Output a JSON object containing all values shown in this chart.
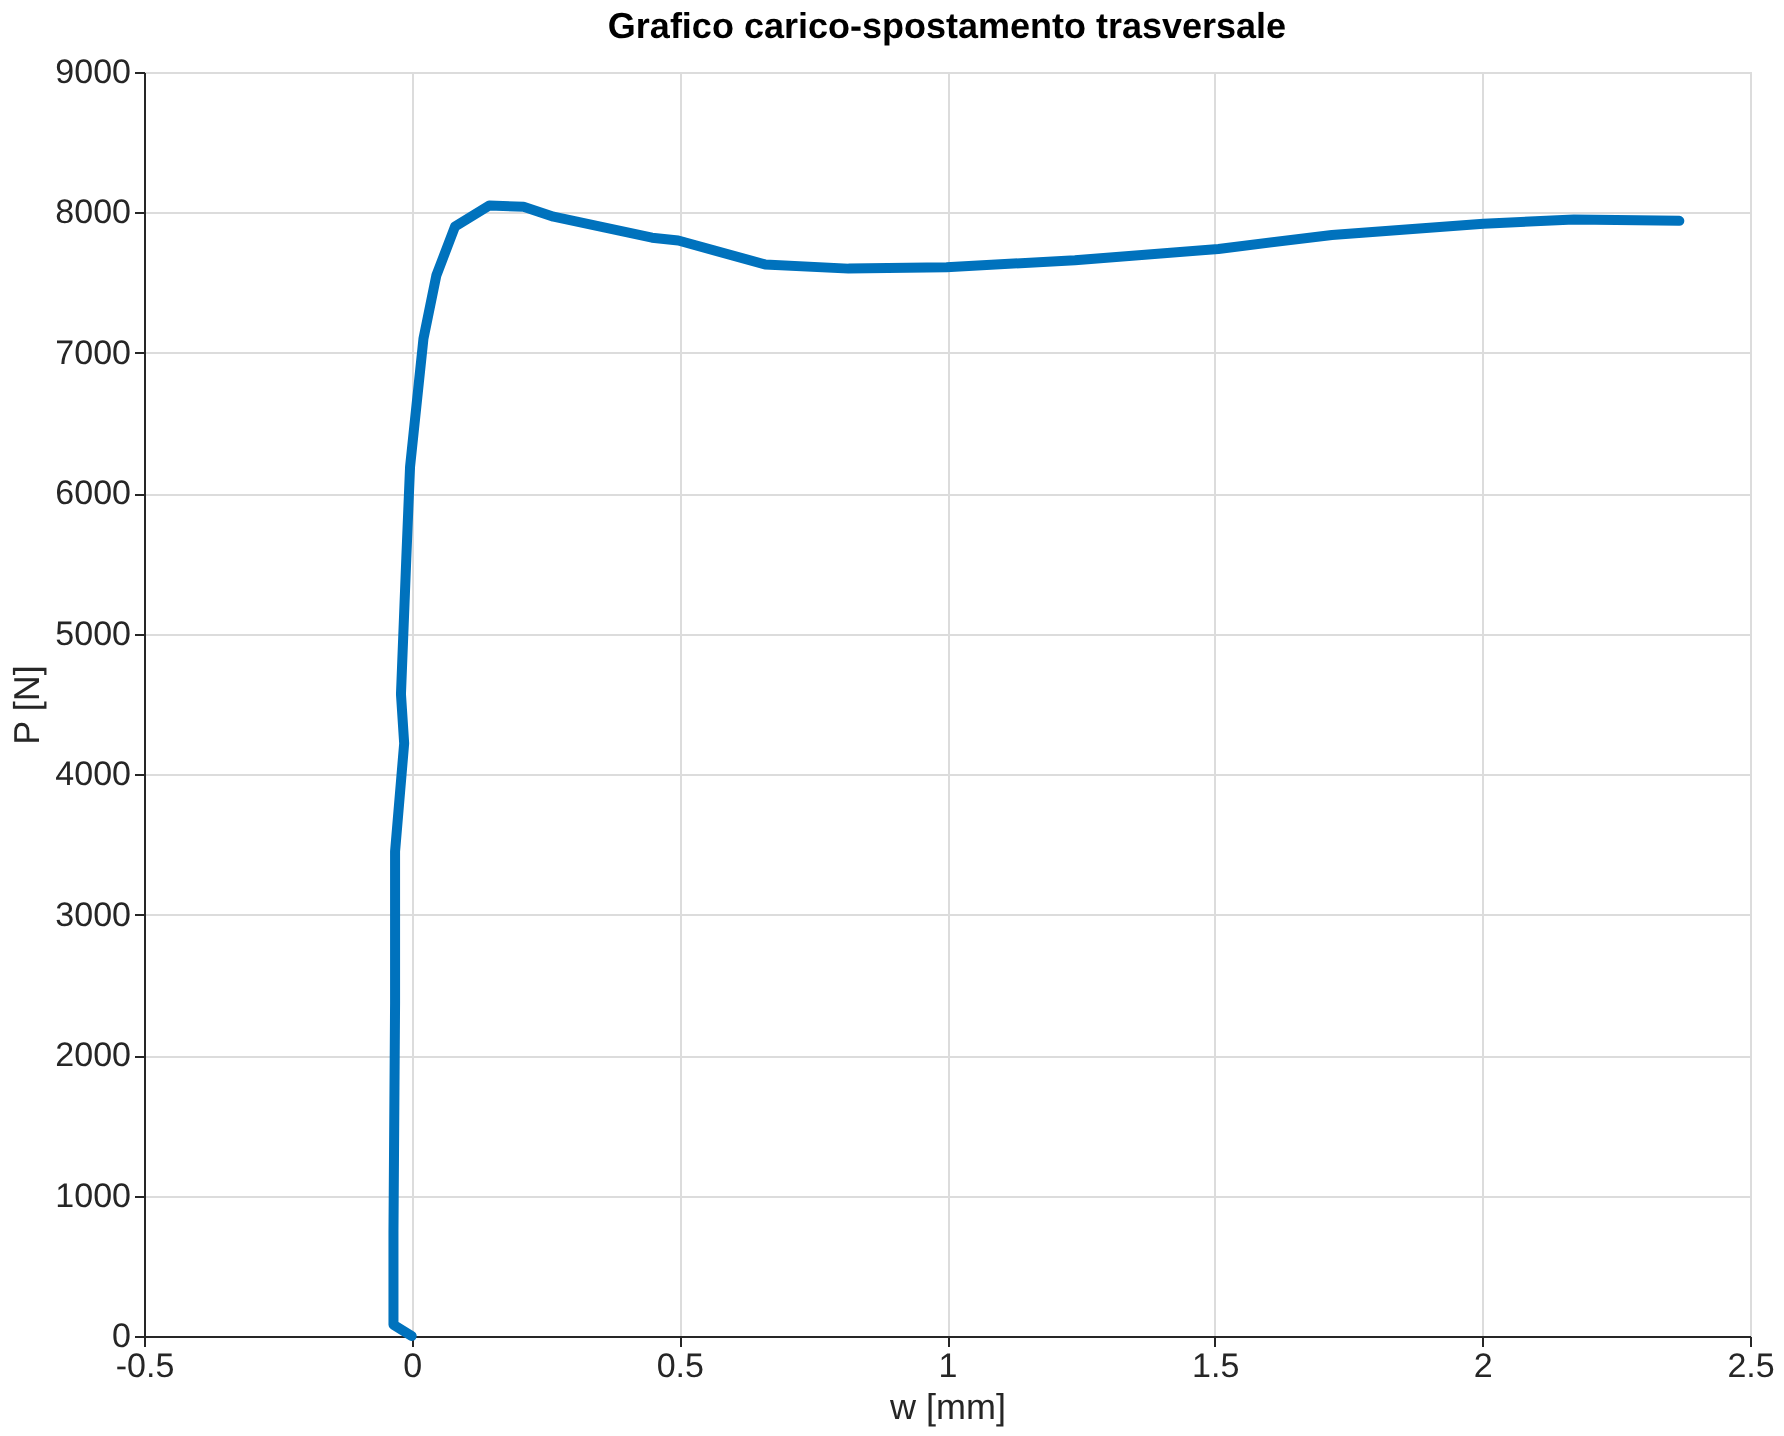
{
  "chart_data": {
    "type": "line",
    "title": "Grafico carico-spostamento trasversale",
    "xlabel": "w [mm]",
    "ylabel": "P [N]",
    "x": [
      0,
      -0.034,
      -0.034,
      -0.031,
      -0.031,
      -0.014,
      -0.02,
      -0.01,
      -0.003,
      0.022,
      0.046,
      0.081,
      0.145,
      0.209,
      0.265,
      0.449,
      0.498,
      0.66,
      0.816,
      0.999,
      1.239,
      1.507,
      1.719,
      2.002,
      2.171,
      2.368
    ],
    "series": [
      {
        "color": "#0072bd",
        "values": [
          0,
          80,
          750,
          2370,
          3450,
          4220,
          4570,
          5540,
          6190,
          7100,
          7550,
          7900,
          8050,
          8040,
          7970,
          7820,
          7800,
          7630,
          7600,
          7610,
          7660,
          7740,
          7840,
          7920,
          7950,
          7940
        ]
      }
    ],
    "xlim": [
      -0.5,
      2.5
    ],
    "xticks": [
      -0.5,
      0,
      0.5,
      1,
      1.5,
      2,
      2.5
    ],
    "ylim": [
      0,
      9000
    ],
    "yticks": [
      0,
      1000,
      2000,
      3000,
      4000,
      5000,
      6000,
      7000,
      8000,
      9000
    ],
    "grid": true,
    "marker": "none",
    "line_style": "solid"
  }
}
